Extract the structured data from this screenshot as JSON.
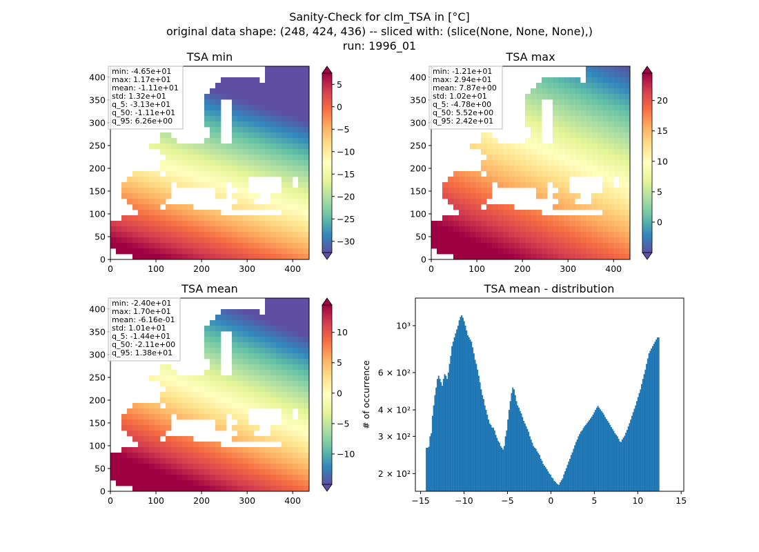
{
  "figure": {
    "title_lines": [
      "Sanity-Check for clm_TSA in [°C]",
      "original data shape: (248, 424, 436) -- sliced with: (slice(None, None, None),)",
      "run: 1996_01"
    ]
  },
  "colors": {
    "histogram_bar": "#1f77b4",
    "colormap": [
      "#5e4fa2",
      "#3288bd",
      "#66c2a5",
      "#abdda4",
      "#e6f598",
      "#ffffbf",
      "#fee08b",
      "#fdae61",
      "#f46d43",
      "#d53e4f",
      "#9e0142"
    ]
  },
  "chart_data": [
    {
      "id": "tsa-min",
      "type": "heatmap",
      "title": "TSA min",
      "colormap": "Spectral_r",
      "xlim": [
        0,
        436
      ],
      "ylim": [
        0,
        424
      ],
      "xticks": [
        "0",
        "100",
        "200",
        "300",
        "400"
      ],
      "yticks": [
        "0",
        "50",
        "100",
        "150",
        "200",
        "250",
        "300",
        "350",
        "400"
      ],
      "colorbar": {
        "min": -32.5,
        "max": 7.5,
        "extend": "both",
        "ticks": [
          "5",
          "0",
          "−5",
          "−10",
          "−15",
          "−20",
          "−25",
          "−30"
        ],
        "tick_values": [
          5,
          0,
          -5,
          -10,
          -15,
          -20,
          -25,
          -30
        ]
      },
      "stats": [
        "min: -4.65e+01",
        "max: 1.17e+01",
        "mean: -1.11e+01",
        "std: 1.32e+01",
        "q_5: -3.13e+01",
        "q_50: -1.11e+01",
        "q_95: 6.26e+00"
      ]
    },
    {
      "id": "tsa-max",
      "type": "heatmap",
      "title": "TSA max",
      "colormap": "Spectral_r",
      "xlim": [
        0,
        436
      ],
      "ylim": [
        0,
        424
      ],
      "xticks": [
        "0",
        "100",
        "200",
        "300",
        "400"
      ],
      "yticks": [
        "0",
        "50",
        "100",
        "150",
        "200",
        "250",
        "300",
        "350",
        "400"
      ],
      "colorbar": {
        "min": -5,
        "max": 24.5,
        "extend": "both",
        "ticks": [
          "20",
          "15",
          "10",
          "5",
          "0"
        ],
        "tick_values": [
          20,
          15,
          10,
          5,
          0
        ]
      },
      "stats": [
        "min: -1.21e+01",
        "max: 2.94e+01",
        "mean: 7.87e+00",
        "std: 1.02e+01",
        "q_5: -4.78e+00",
        "q_50: 5.52e+00",
        "q_95: 2.42e+01"
      ]
    },
    {
      "id": "tsa-mean",
      "type": "heatmap",
      "title": "TSA mean",
      "colormap": "Spectral_r",
      "xlim": [
        0,
        436
      ],
      "ylim": [
        0,
        424
      ],
      "xticks": [
        "0",
        "100",
        "200",
        "300",
        "400"
      ],
      "yticks": [
        "0",
        "50",
        "100",
        "150",
        "200",
        "250",
        "300",
        "350",
        "400"
      ],
      "colorbar": {
        "min": -15,
        "max": 14.5,
        "extend": "both",
        "ticks": [
          "10",
          "5",
          "0",
          "−5",
          "−10"
        ],
        "tick_values": [
          10,
          5,
          0,
          -5,
          -10
        ]
      },
      "stats": [
        "min: -2.40e+01",
        "max: 1.70e+01",
        "mean: -6.16e-01",
        "std: 1.01e+01",
        "q_5: -1.44e+01",
        "q_50: -2.11e+00",
        "q_95: 1.38e+01"
      ]
    },
    {
      "id": "tsa-mean-distribution",
      "type": "bar",
      "title": "TSA mean - distribution",
      "ylabel": "# of occurrence",
      "xlabel": "",
      "yscale": "log",
      "xlim": [
        -15.6,
        15.3
      ],
      "ylim": [
        165,
        1350
      ],
      "xticks": [
        "−15",
        "−10",
        "−5",
        "0",
        "5",
        "10",
        "15"
      ],
      "xtick_values": [
        -15,
        -10,
        -5,
        0,
        5,
        10,
        15
      ],
      "yticks": [
        "10³",
        "6 × 10²",
        "4 × 10²",
        "3 × 10²",
        "2 × 10²"
      ],
      "ytick_values": [
        1000,
        600,
        400,
        300,
        200
      ],
      "x_start": -14.4,
      "bin_width": 0.14,
      "values": [
        265,
        265,
        268,
        300,
        310,
        375,
        420,
        470,
        510,
        560,
        580,
        560,
        540,
        520,
        560,
        590,
        580,
        560,
        600,
        660,
        720,
        800,
        840,
        880,
        920,
        960,
        1000,
        1060,
        1100,
        1120,
        1090,
        1050,
        1000,
        950,
        900,
        880,
        860,
        840,
        790,
        740,
        690,
        660,
        620,
        580,
        540,
        500,
        470,
        450,
        420,
        400,
        380,
        360,
        345,
        340,
        330,
        330,
        320,
        305,
        295,
        285,
        280,
        270,
        265,
        260,
        270,
        300,
        320,
        360,
        400,
        440,
        480,
        510,
        500,
        470,
        440,
        420,
        410,
        395,
        385,
        370,
        355,
        345,
        335,
        325,
        315,
        300,
        290,
        280,
        270,
        265,
        262,
        255,
        250,
        245,
        235,
        230,
        222,
        218,
        214,
        210,
        205,
        200,
        198,
        192,
        190,
        185,
        183,
        180,
        178,
        177,
        182,
        186,
        190,
        198,
        205,
        212,
        220,
        228,
        235,
        245,
        252,
        262,
        272,
        282,
        290,
        300,
        308,
        316,
        320,
        328,
        335,
        340,
        346,
        352,
        358,
        365,
        372,
        380,
        390,
        400,
        410,
        418,
        410,
        402,
        395,
        388,
        380,
        370,
        362,
        355,
        348,
        340,
        332,
        325,
        318,
        310,
        305,
        300,
        292,
        284,
        282,
        290,
        296,
        302,
        312,
        322,
        334,
        346,
        360,
        375,
        390,
        405,
        420,
        440,
        460,
        480,
        500,
        530,
        560,
        590,
        620,
        660,
        700,
        740,
        760,
        780,
        800,
        820,
        840,
        860,
        880,
        880
      ]
    }
  ]
}
